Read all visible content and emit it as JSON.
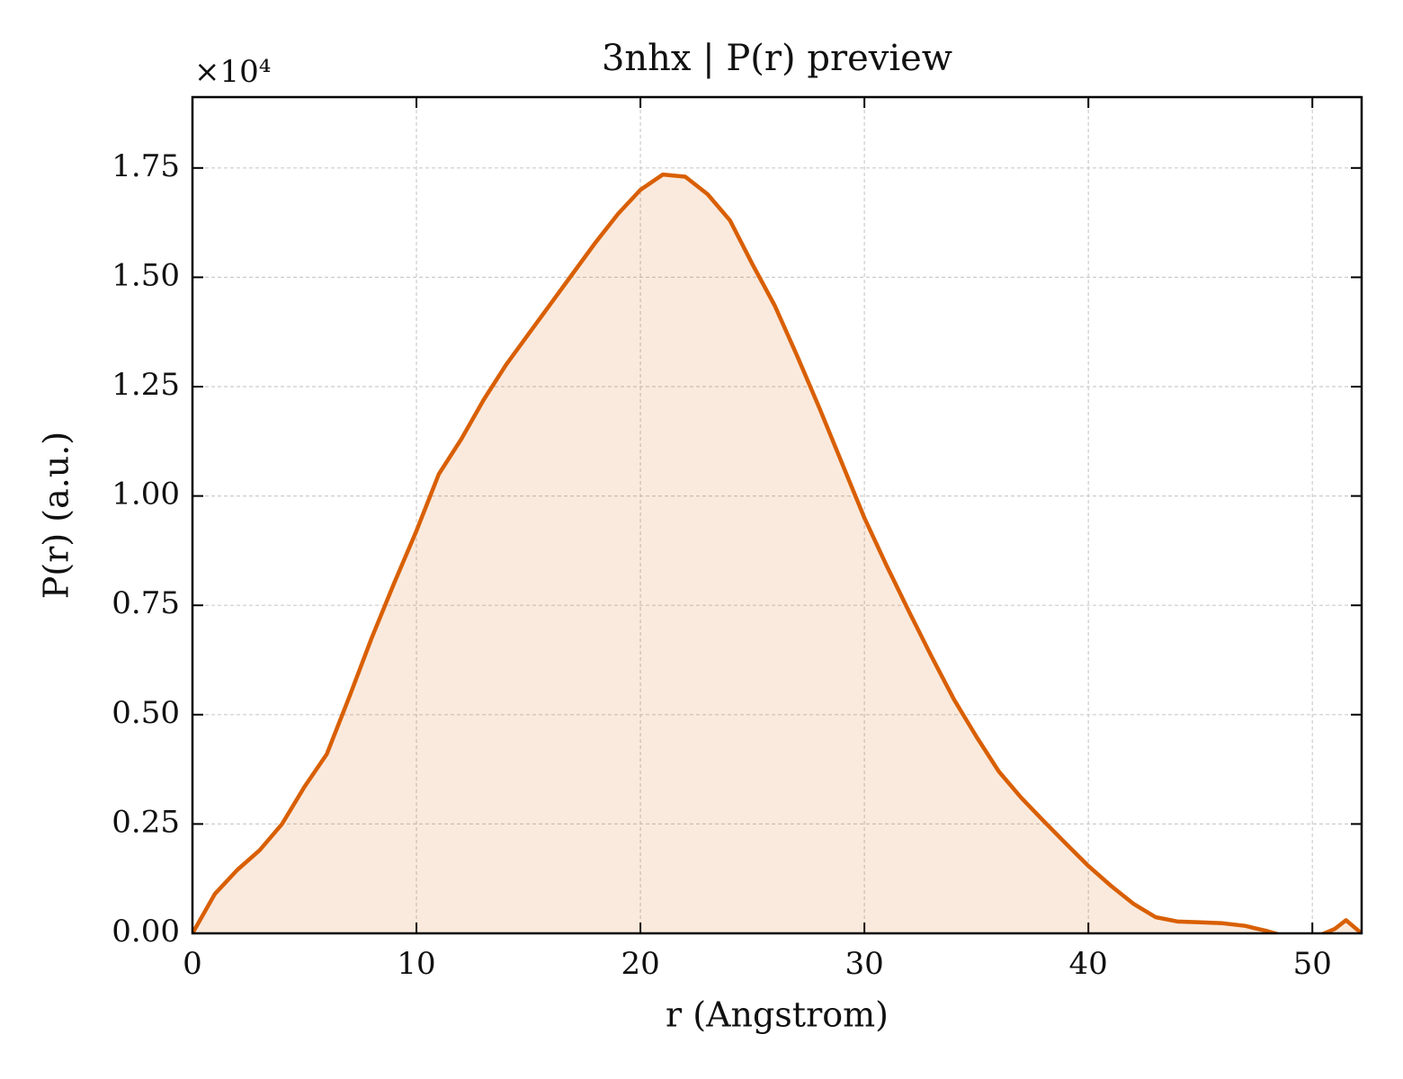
{
  "chart_data": {
    "type": "line",
    "title": "3nhx | P(r) preview",
    "xlabel": "r (Angstrom)",
    "ylabel": "P(r) (a.u.)",
    "y_offset_text": "×10⁴",
    "x": [
      0,
      1,
      2,
      3,
      4,
      5,
      6,
      7,
      8,
      9,
      10,
      11,
      12,
      13,
      14,
      15,
      16,
      17,
      18,
      19,
      20,
      21,
      22,
      23,
      24,
      25,
      26,
      27,
      28,
      29,
      30,
      31,
      32,
      33,
      34,
      35,
      36,
      37,
      38,
      39,
      40,
      41,
      42,
      43,
      44,
      45,
      46,
      47,
      48,
      49,
      50,
      51,
      51.5,
      52.2
    ],
    "series": [
      {
        "name": "P(r)",
        "color": "#d95f02",
        "fill_opacity": 0.13,
        "values": [
          0,
          0.09,
          0.145,
          0.19,
          0.25,
          0.335,
          0.41,
          0.54,
          0.675,
          0.8,
          0.92,
          1.05,
          1.13,
          1.22,
          1.3,
          1.37,
          1.44,
          1.51,
          1.58,
          1.645,
          1.7,
          1.735,
          1.73,
          1.69,
          1.63,
          1.53,
          1.435,
          1.32,
          1.2,
          1.075,
          0.95,
          0.84,
          0.735,
          0.633,
          0.535,
          0.45,
          0.37,
          0.31,
          0.257,
          0.205,
          0.154,
          0.109,
          0.068,
          0.037,
          0.027,
          0.025,
          0.023,
          0.017,
          0.005,
          -0.01,
          -0.012,
          0.01,
          0.03,
          0
        ]
      }
    ],
    "xlim": [
      0,
      52.2
    ],
    "ylim": [
      0,
      1.912
    ],
    "xticks": [
      0,
      10,
      20,
      30,
      40,
      50
    ],
    "yticks": [
      {
        "value": 0,
        "label": "0.00"
      },
      {
        "value": 0.25,
        "label": "0.25"
      },
      {
        "value": 0.5,
        "label": "0.50"
      },
      {
        "value": 0.75,
        "label": "0.75"
      },
      {
        "value": 1,
        "label": "1.00"
      },
      {
        "value": 1.25,
        "label": "1.25"
      },
      {
        "value": 1.5,
        "label": "1.50"
      },
      {
        "value": 1.75,
        "label": "1.75"
      }
    ],
    "grid": true
  }
}
